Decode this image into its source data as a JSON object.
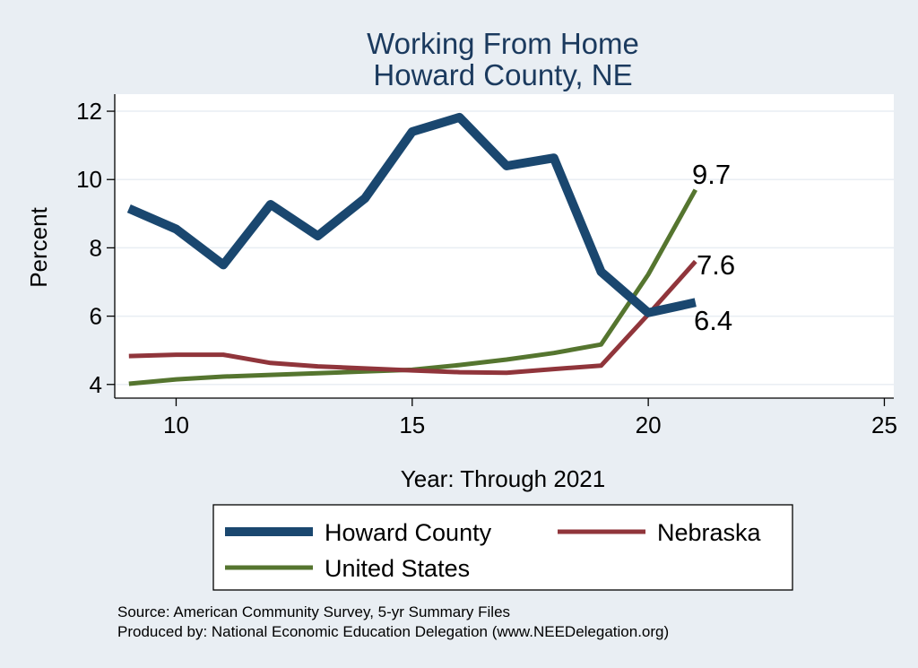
{
  "chart_data": {
    "type": "line",
    "title": [
      "Working From Home",
      "Howard County, NE"
    ],
    "xlabel": "Year: Through 2021",
    "ylabel": "Percent",
    "xlim": [
      8.7,
      25.2
    ],
    "ylim": [
      3.6,
      12.5
    ],
    "x_ticks": [
      10,
      15,
      20,
      25
    ],
    "x_tick_labels": [
      "10",
      "15",
      "20",
      "25"
    ],
    "y_ticks": [
      4,
      6,
      8,
      10,
      12
    ],
    "y_tick_labels": [
      "4",
      "6",
      "8",
      "10",
      "12"
    ],
    "grid": true,
    "x": [
      9,
      10,
      11,
      12,
      13,
      14,
      15,
      16,
      17,
      18,
      19,
      20,
      21
    ],
    "series": [
      {
        "name": "Howard County",
        "color": "#1a476f",
        "values": [
          9.15,
          8.55,
          7.5,
          9.27,
          8.35,
          9.45,
          11.4,
          11.82,
          10.4,
          10.63,
          7.3,
          6.1,
          6.4
        ],
        "end_label": "6.4"
      },
      {
        "name": "Nebraska",
        "color": "#90353b",
        "values": [
          4.83,
          4.87,
          4.87,
          4.63,
          4.53,
          4.47,
          4.41,
          4.36,
          4.34,
          4.45,
          4.55,
          6.05,
          7.6
        ],
        "end_label": "7.6"
      },
      {
        "name": "United States",
        "color": "#55752f",
        "values": [
          4.02,
          4.15,
          4.23,
          4.28,
          4.33,
          4.38,
          4.43,
          4.57,
          4.73,
          4.92,
          5.17,
          7.22,
          9.7
        ],
        "end_label": "9.7"
      }
    ],
    "legend": {
      "position": "bottom",
      "entries": [
        "Howard County",
        "Nebraska",
        "United States"
      ]
    },
    "notes": [
      "Source: American Community Survey, 5-yr Summary Files",
      "Produced by: National Economic Education Delegation (www.NEEDelegation.org)"
    ]
  },
  "colors": {
    "background": "#e9eef3",
    "plot_background": "#ffffff",
    "grid": "#e9eef3",
    "title": "#1b3a5e"
  }
}
